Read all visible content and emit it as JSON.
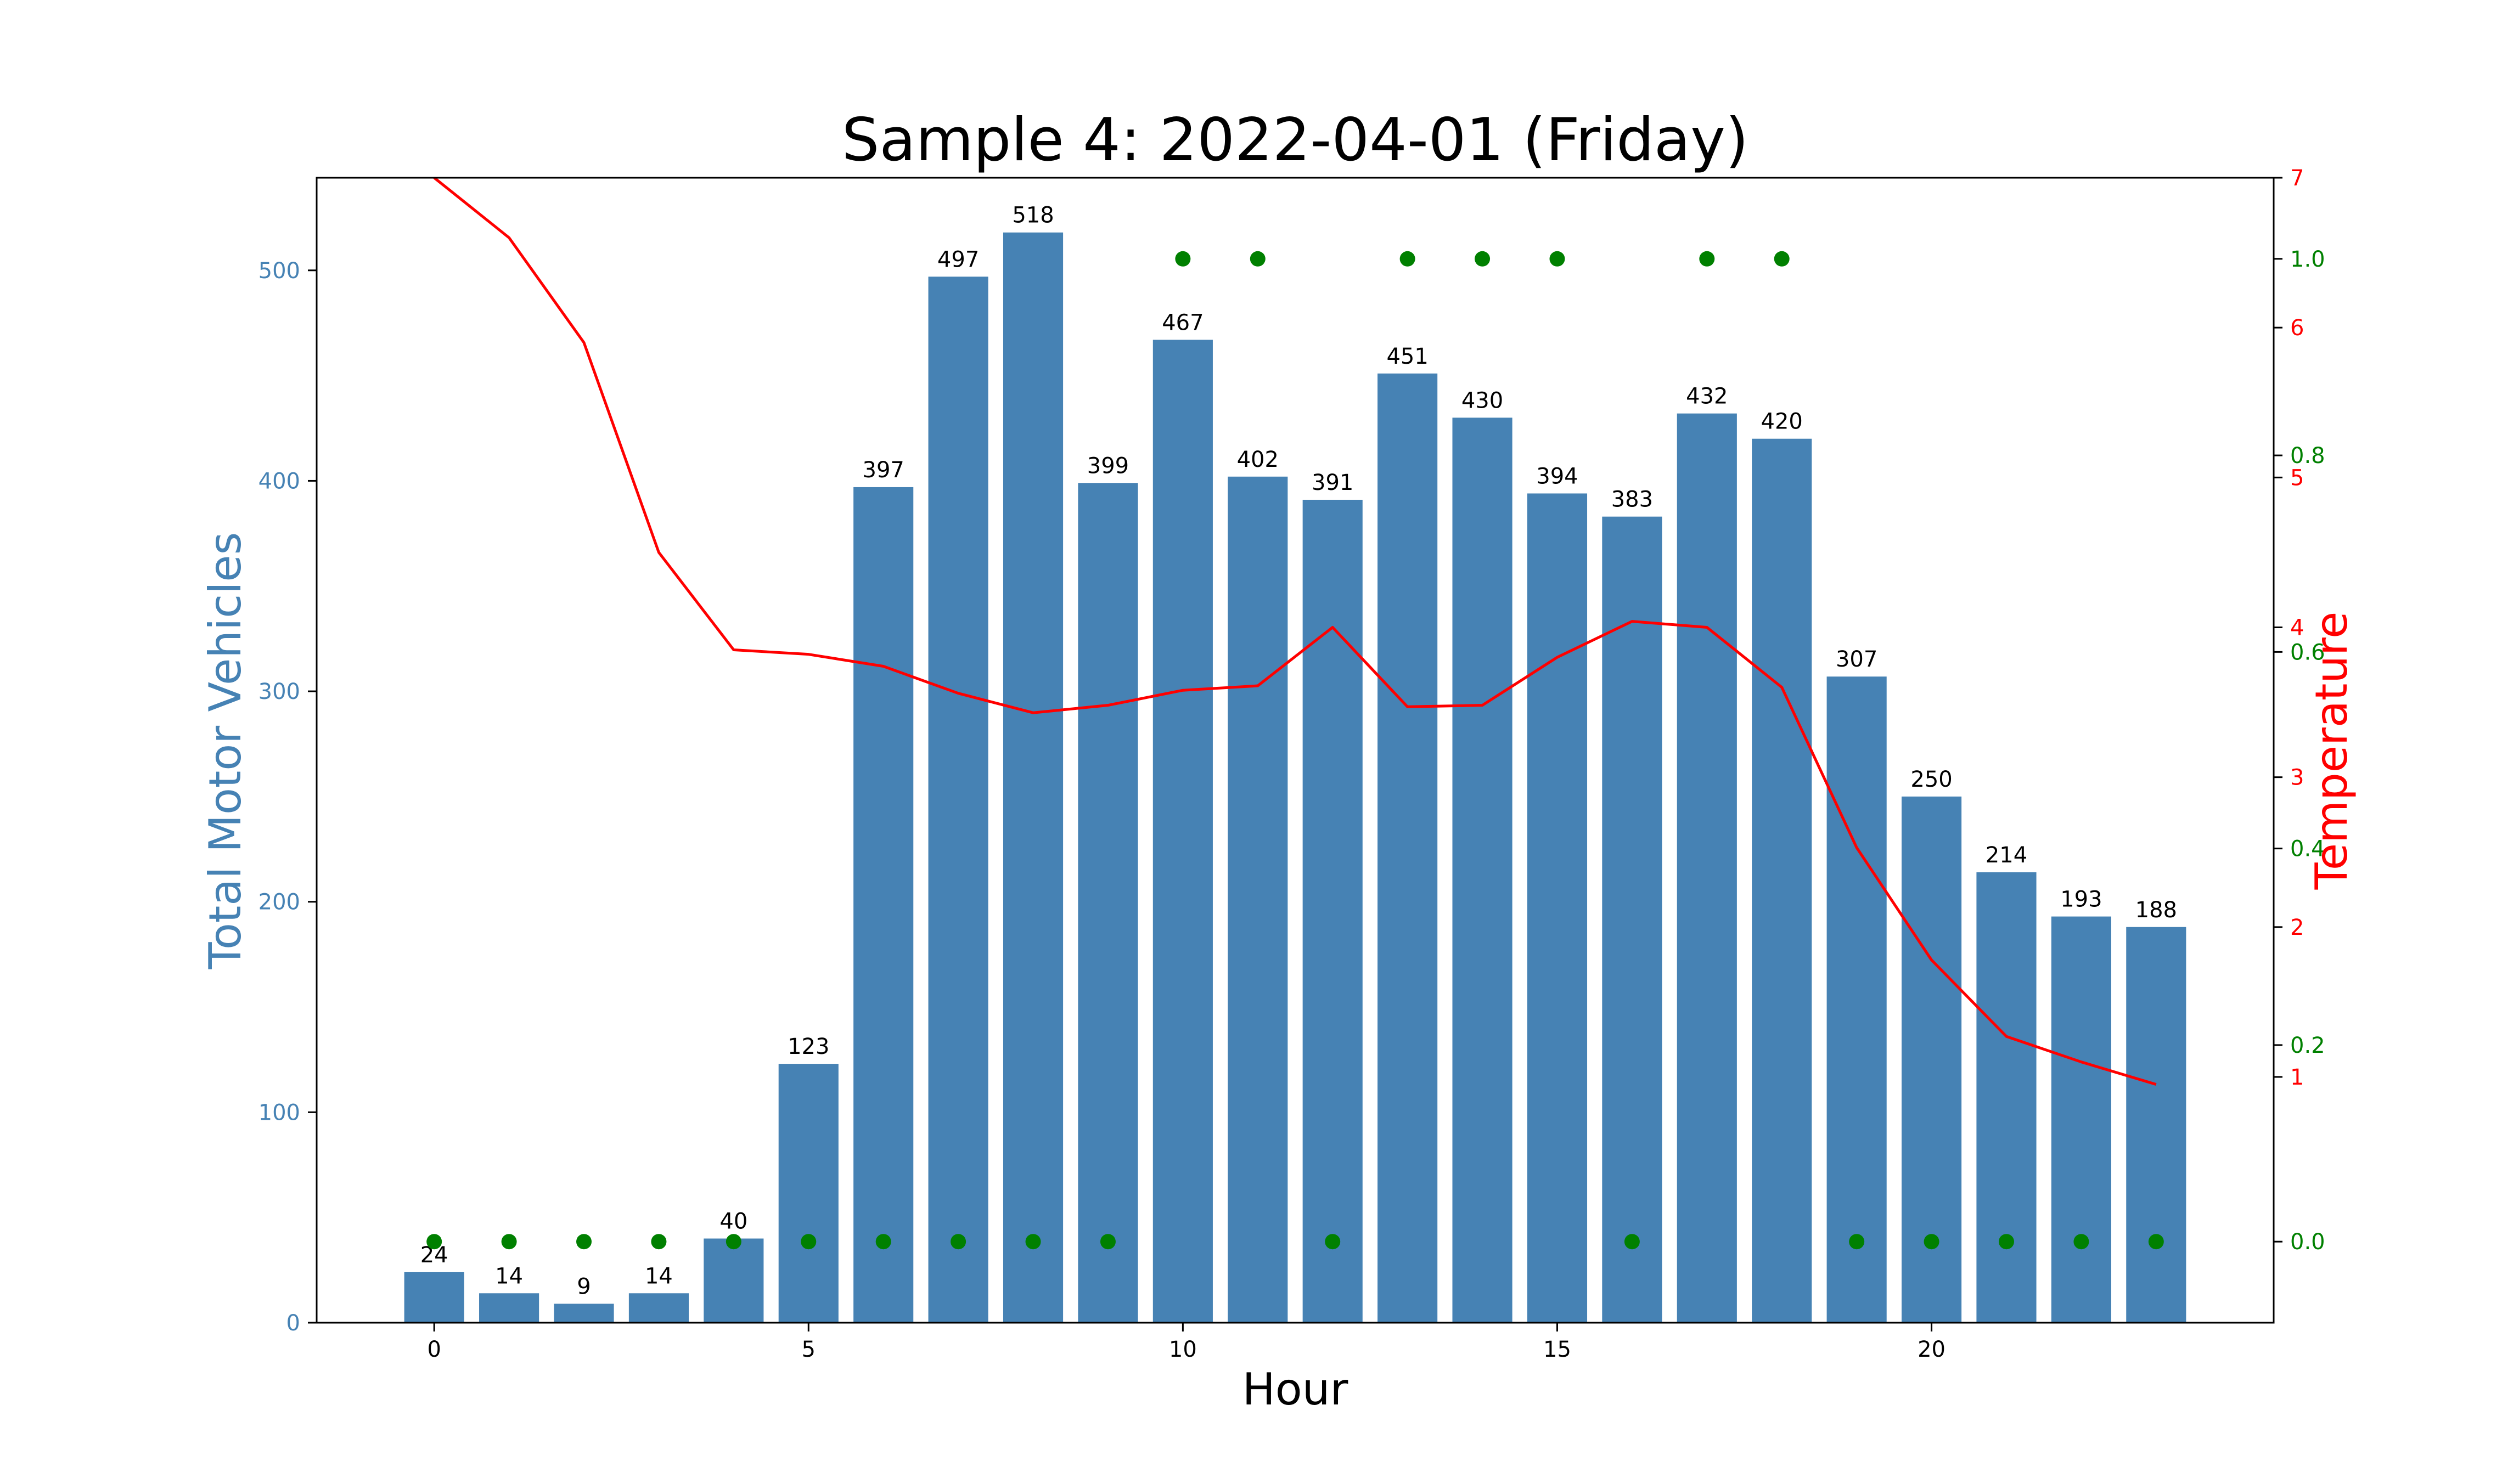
{
  "chart_data": {
    "type": "bar",
    "title": "Sample 4: 2022-04-01 (Friday)",
    "xlabel": "Hour",
    "ylabel": "Total Motor Vehicles",
    "y2label": "Temperature",
    "xlim": [
      -1.57,
      24.57
    ],
    "ylim": [
      0,
      544
    ],
    "y2lim": [
      -0.64,
      7.0
    ],
    "y3lim": [
      -0.0825,
      1.0825
    ],
    "x_ticks": [
      0,
      5,
      10,
      15,
      20
    ],
    "y_ticks": [
      0,
      100,
      200,
      300,
      400,
      500
    ],
    "y2_ticks": [
      1,
      2,
      3,
      4,
      5,
      6,
      7
    ],
    "y3_ticks": [
      0.0,
      0.2,
      0.4,
      0.6,
      0.8,
      1.0
    ],
    "y3_tick_labels": [
      "0.0",
      "0.2",
      "0.4",
      "0.6",
      "0.8",
      "1.0"
    ],
    "grid": false,
    "categories": [
      0,
      1,
      2,
      3,
      4,
      5,
      6,
      7,
      8,
      9,
      10,
      11,
      12,
      13,
      14,
      15,
      16,
      17,
      18,
      19,
      20,
      21,
      22,
      23
    ],
    "bar_series": {
      "values": [
        24,
        14,
        9,
        14,
        40,
        123,
        397,
        497,
        518,
        399,
        467,
        402,
        391,
        451,
        430,
        394,
        383,
        432,
        420,
        307,
        250,
        214,
        193,
        188
      ],
      "color": "#4682b4"
    },
    "line_series": {
      "values": [
        7.0,
        6.6,
        5.9,
        4.5,
        3.85,
        3.82,
        3.74,
        3.56,
        3.43,
        3.48,
        3.58,
        3.61,
        4.0,
        3.47,
        3.48,
        3.8,
        4.04,
        4.0,
        3.6,
        2.53,
        1.78,
        1.27,
        1.1,
        0.95
      ],
      "color": "#ff0000"
    },
    "dot_series": {
      "values": [
        0,
        0,
        0,
        0,
        0,
        0,
        0,
        0,
        0,
        0,
        1,
        1,
        0,
        1,
        1,
        1,
        0,
        1,
        1,
        0,
        0,
        0,
        0,
        0
      ],
      "color": "#008000"
    },
    "axis_colors": {
      "left": "#4682b4",
      "right_temperature": "#ff0000",
      "right_indicator": "#008000"
    }
  }
}
